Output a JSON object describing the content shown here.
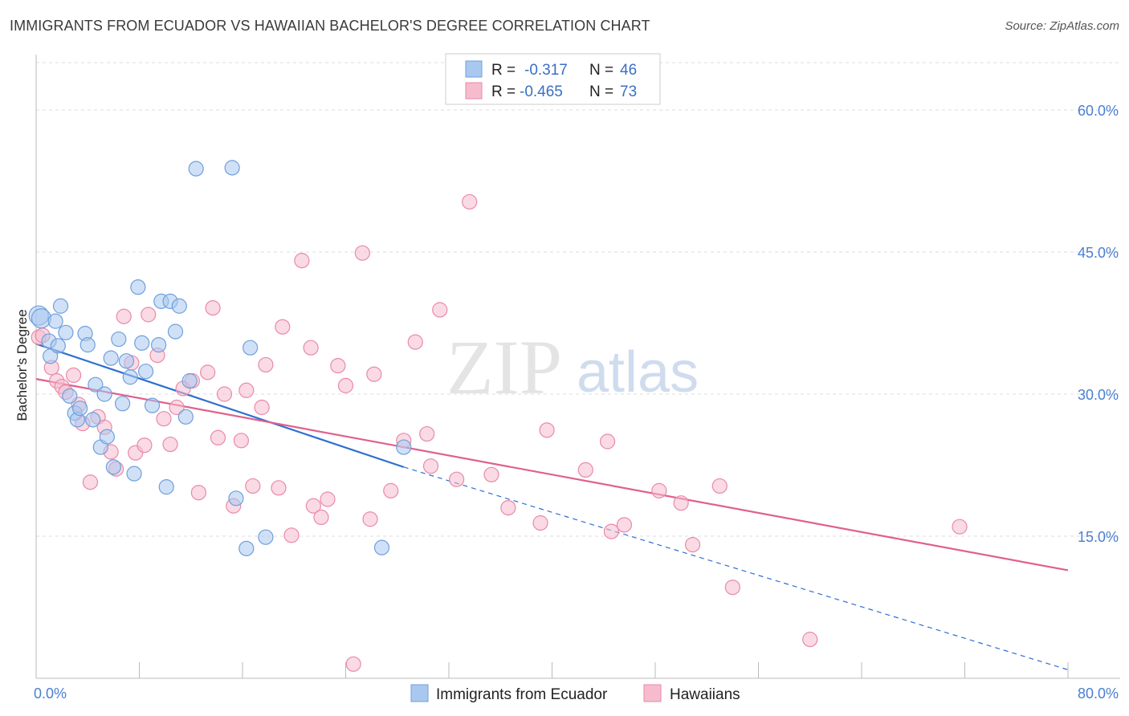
{
  "header": {
    "title": "IMMIGRANTS FROM ECUADOR VS HAWAIIAN BACHELOR'S DEGREE CORRELATION CHART",
    "source": "Source: ZipAtlas.com"
  },
  "watermark": {
    "zip": "ZIP",
    "atlas": "atlas"
  },
  "legend_top": {
    "rows": [
      {
        "r_label": "R =",
        "r_value": "-0.317",
        "n_label": "N =",
        "n_value": "46"
      },
      {
        "r_label": "R =",
        "r_value": "-0.465",
        "n_label": "N =",
        "n_value": "73"
      }
    ]
  },
  "legend_bottom": {
    "series_a": "Immigrants from Ecuador",
    "series_b": "Hawaiians"
  },
  "colors": {
    "blue_fill": "#a9c8f0",
    "blue_stroke": "#6f9fdc",
    "blue_line": "#2e6fd0",
    "pink_fill": "#f6bccd",
    "pink_stroke": "#e98aa8",
    "pink_line": "#e0608c",
    "tick_text": "#4a7fd0",
    "grid": "#dcdcdc"
  },
  "chart_data": {
    "type": "scatter",
    "title": "IMMIGRANTS FROM ECUADOR VS HAWAIIAN BACHELOR'S DEGREE CORRELATION CHART",
    "xlabel": "",
    "ylabel": "Bachelor's Degree",
    "xlim": [
      0,
      80
    ],
    "ylim": [
      0,
      65
    ],
    "x_tick_labels": [
      "0.0%",
      "80.0%"
    ],
    "y_ticks": [
      15,
      30,
      45,
      60
    ],
    "y_tick_labels": [
      "15.0%",
      "30.0%",
      "45.0%",
      "60.0%"
    ],
    "grid": true,
    "legend_position": "top-center",
    "series": [
      {
        "name": "Immigrants from Ecuador",
        "color": "#a9c8f0",
        "points": [
          [
            0.2,
            38.3
          ],
          [
            0.4,
            38.0
          ],
          [
            1.0,
            35.6
          ],
          [
            1.1,
            34.0
          ],
          [
            1.5,
            37.7
          ],
          [
            1.7,
            35.1
          ],
          [
            1.9,
            39.3
          ],
          [
            2.3,
            36.5
          ],
          [
            2.6,
            29.8
          ],
          [
            3.0,
            28.0
          ],
          [
            3.2,
            27.3
          ],
          [
            3.4,
            28.5
          ],
          [
            3.8,
            36.4
          ],
          [
            4.0,
            35.2
          ],
          [
            4.4,
            27.3
          ],
          [
            4.6,
            31.0
          ],
          [
            5.0,
            24.4
          ],
          [
            5.3,
            30.0
          ],
          [
            5.5,
            25.5
          ],
          [
            5.8,
            33.8
          ],
          [
            6.0,
            22.3
          ],
          [
            6.4,
            35.8
          ],
          [
            6.7,
            29.0
          ],
          [
            7.0,
            33.5
          ],
          [
            7.3,
            31.8
          ],
          [
            7.6,
            21.6
          ],
          [
            7.9,
            41.3
          ],
          [
            8.2,
            35.4
          ],
          [
            8.5,
            32.4
          ],
          [
            9.0,
            28.8
          ],
          [
            9.5,
            35.2
          ],
          [
            9.7,
            39.8
          ],
          [
            10.1,
            20.2
          ],
          [
            10.4,
            39.8
          ],
          [
            10.8,
            36.6
          ],
          [
            11.1,
            39.3
          ],
          [
            11.6,
            27.6
          ],
          [
            11.9,
            31.4
          ],
          [
            12.4,
            53.8
          ],
          [
            15.2,
            53.9
          ],
          [
            15.5,
            19.0
          ],
          [
            16.3,
            13.7
          ],
          [
            16.6,
            34.9
          ],
          [
            17.8,
            14.9
          ],
          [
            26.8,
            13.8
          ],
          [
            28.5,
            24.4
          ]
        ]
      },
      {
        "name": "Hawaiians",
        "color": "#f6bccd",
        "points": [
          [
            0.2,
            36.0
          ],
          [
            1.2,
            32.8
          ],
          [
            1.6,
            31.4
          ],
          [
            2.0,
            30.8
          ],
          [
            2.3,
            30.2
          ],
          [
            2.9,
            32.0
          ],
          [
            3.3,
            28.9
          ],
          [
            3.6,
            26.9
          ],
          [
            4.2,
            20.7
          ],
          [
            4.8,
            27.6
          ],
          [
            5.3,
            26.5
          ],
          [
            5.8,
            23.9
          ],
          [
            6.2,
            22.1
          ],
          [
            6.8,
            38.2
          ],
          [
            7.4,
            33.3
          ],
          [
            7.7,
            23.8
          ],
          [
            8.4,
            24.6
          ],
          [
            8.7,
            38.4
          ],
          [
            9.4,
            34.1
          ],
          [
            9.9,
            27.4
          ],
          [
            10.4,
            24.7
          ],
          [
            10.9,
            28.6
          ],
          [
            11.4,
            30.6
          ],
          [
            12.1,
            31.4
          ],
          [
            12.6,
            19.6
          ],
          [
            13.3,
            32.3
          ],
          [
            13.7,
            39.1
          ],
          [
            14.1,
            25.4
          ],
          [
            14.6,
            30.0
          ],
          [
            15.3,
            18.2
          ],
          [
            15.9,
            25.1
          ],
          [
            16.3,
            30.4
          ],
          [
            16.8,
            20.3
          ],
          [
            17.5,
            28.6
          ],
          [
            17.8,
            33.1
          ],
          [
            18.8,
            20.1
          ],
          [
            19.1,
            37.1
          ],
          [
            19.8,
            15.1
          ],
          [
            20.6,
            44.1
          ],
          [
            21.3,
            34.9
          ],
          [
            21.5,
            18.2
          ],
          [
            22.1,
            17.0
          ],
          [
            22.6,
            18.9
          ],
          [
            23.4,
            33.0
          ],
          [
            24.0,
            30.9
          ],
          [
            24.6,
            1.5
          ],
          [
            25.3,
            44.9
          ],
          [
            25.9,
            16.8
          ],
          [
            26.2,
            32.1
          ],
          [
            27.5,
            19.8
          ],
          [
            28.5,
            25.1
          ],
          [
            29.4,
            35.5
          ],
          [
            30.3,
            25.8
          ],
          [
            30.6,
            22.4
          ],
          [
            31.3,
            38.9
          ],
          [
            32.6,
            21.0
          ],
          [
            33.6,
            50.3
          ],
          [
            35.3,
            21.5
          ],
          [
            36.6,
            18.0
          ],
          [
            39.1,
            16.4
          ],
          [
            39.6,
            26.2
          ],
          [
            42.6,
            22.0
          ],
          [
            44.3,
            25.0
          ],
          [
            44.6,
            15.5
          ],
          [
            45.6,
            16.2
          ],
          [
            48.3,
            19.8
          ],
          [
            50.0,
            18.5
          ],
          [
            50.9,
            14.1
          ],
          [
            53.0,
            20.3
          ],
          [
            54.0,
            9.6
          ],
          [
            60.0,
            4.1
          ],
          [
            71.6,
            16.0
          ],
          [
            0.5,
            36.2
          ]
        ]
      }
    ],
    "trend_lines": [
      {
        "series": "Immigrants from Ecuador",
        "x": [
          0,
          28.5
        ],
        "y": [
          35.3,
          22.3
        ],
        "extended_dashed_to": [
          80,
          0.9
        ]
      },
      {
        "series": "Hawaiians",
        "x": [
          0,
          80
        ],
        "y": [
          31.6,
          11.4
        ]
      }
    ]
  }
}
